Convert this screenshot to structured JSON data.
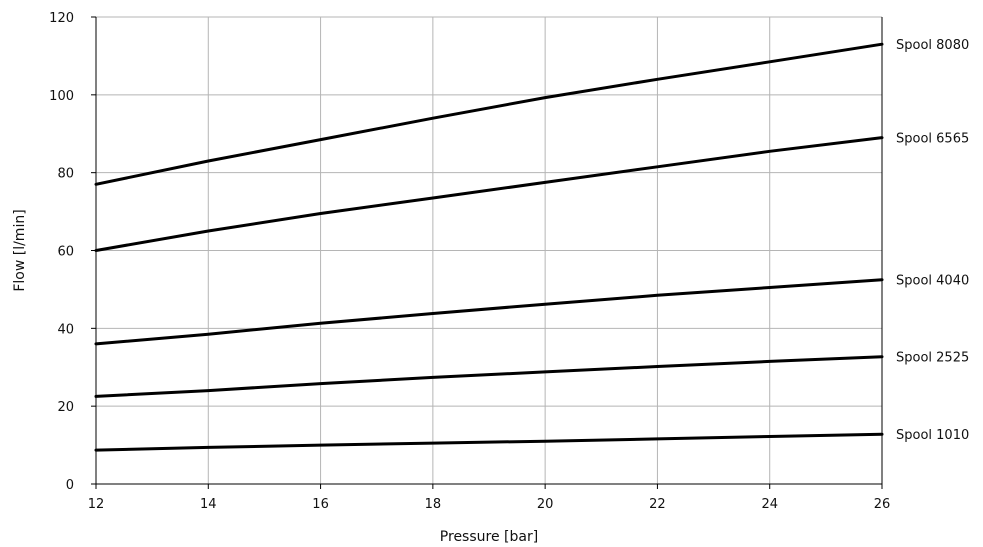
{
  "chart_data": {
    "type": "line",
    "title": "",
    "xlabel": "Pressure [bar]",
    "ylabel": "Flow [l/min]",
    "xlim": [
      12,
      26
    ],
    "ylim": [
      0,
      120
    ],
    "xticks": [
      12,
      14,
      16,
      18,
      20,
      22,
      24,
      26
    ],
    "yticks": [
      0,
      20,
      40,
      60,
      80,
      100,
      120
    ],
    "grid": true,
    "legend": "series labels at right end of lines",
    "series": [
      {
        "name": "Spool 8080",
        "x": [
          12,
          14,
          16,
          18,
          20,
          22,
          24,
          26
        ],
        "y": [
          77,
          83,
          88.5,
          94,
          99.3,
          104,
          108.5,
          113
        ]
      },
      {
        "name": "Spool 6565",
        "x": [
          12,
          14,
          16,
          18,
          20,
          22,
          24,
          26
        ],
        "y": [
          60,
          65,
          69.5,
          73.5,
          77.5,
          81.5,
          85.5,
          89
        ]
      },
      {
        "name": "Spool 4040",
        "x": [
          12,
          14,
          16,
          18,
          20,
          22,
          24,
          26
        ],
        "y": [
          36,
          38.5,
          41.3,
          43.8,
          46.2,
          48.5,
          50.5,
          52.5
        ]
      },
      {
        "name": "Spool 2525",
        "x": [
          12,
          14,
          16,
          18,
          20,
          22,
          24,
          26
        ],
        "y": [
          22.5,
          24,
          25.8,
          27.4,
          28.8,
          30.2,
          31.5,
          32.7
        ]
      },
      {
        "name": "Spool 1010",
        "x": [
          12,
          14,
          16,
          18,
          20,
          22,
          24,
          26
        ],
        "y": [
          8.7,
          9.4,
          10,
          10.5,
          11,
          11.6,
          12.2,
          12.8
        ]
      }
    ],
    "colors": {
      "line": "#000000",
      "grid": "#b5b5b5",
      "background": "#ffffff"
    }
  }
}
